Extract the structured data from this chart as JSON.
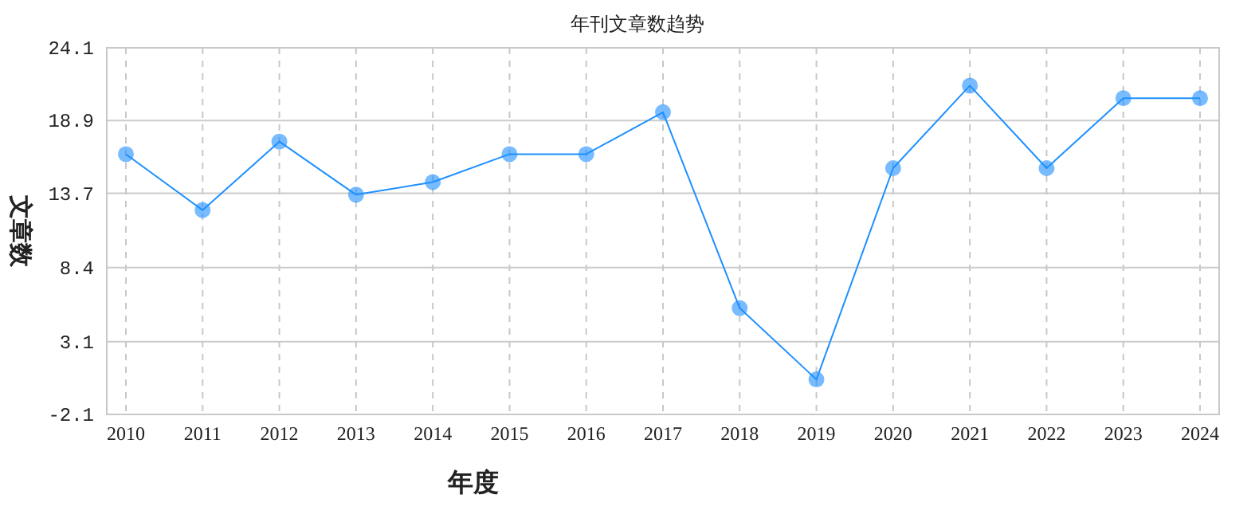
{
  "chart_data": {
    "type": "line",
    "title": "年刊文章数趋势",
    "xlabel": "年度",
    "ylabel": "文章数",
    "categories": [
      "2010",
      "2011",
      "2012",
      "2013",
      "2014",
      "2015",
      "2016",
      "2017",
      "2018",
      "2019",
      "2020",
      "2021",
      "2022",
      "2023",
      "2024"
    ],
    "series": [
      {
        "color": "#1e90ff",
        "values": [
          16.5,
          12.5,
          17.4,
          13.6,
          14.5,
          16.5,
          16.5,
          19.5,
          5.5,
          0.4,
          15.5,
          21.4,
          15.5,
          20.5,
          20.5
        ]
      }
    ],
    "ylim": [
      -2.1,
      24.1
    ],
    "yticks": [
      -2.1,
      3.1,
      8.4,
      13.7,
      18.9,
      24.1
    ],
    "grid": true,
    "marker": "circle"
  }
}
